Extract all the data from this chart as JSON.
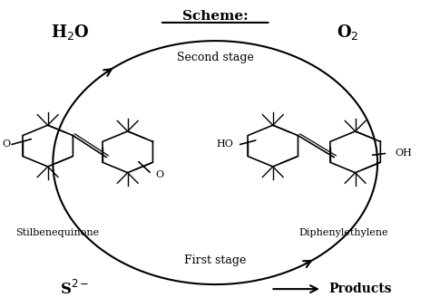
{
  "title": "Scheme:",
  "background_color": "#ffffff",
  "text_color": "#000000",
  "h2o": "H$_2$O",
  "o2": "O$_2$",
  "second_stage": "Second stage",
  "first_stage": "First stage",
  "s2minus": "S$^{2-}$",
  "products": "Products",
  "stilbenequinone": "Stilbenequinone",
  "diphenylethylene": "Diphenylethylene",
  "figsize": [
    4.74,
    3.39
  ],
  "dpi": 100
}
